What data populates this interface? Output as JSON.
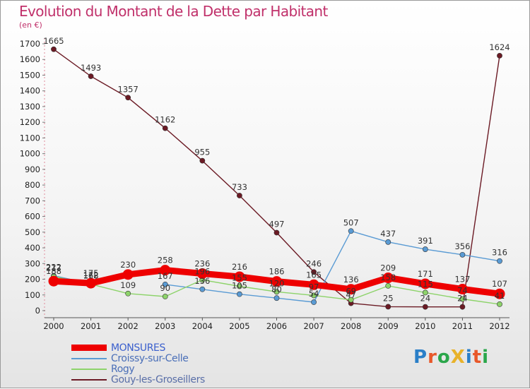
{
  "title": "Evolution du Montant de la Dette par Habitant",
  "subtitle": "(en €)",
  "brand": {
    "text": "ProXiti",
    "letters": [
      {
        "ch": "P",
        "color": "#2a7fc8"
      },
      {
        "ch": "r",
        "color": "#e8582a"
      },
      {
        "ch": "o",
        "color": "#2aa64a"
      },
      {
        "ch": "X",
        "color": "#e8b22a"
      },
      {
        "ch": "i",
        "color": "#2a7fc8"
      },
      {
        "ch": "t",
        "color": "#e8582a"
      },
      {
        "ch": "i",
        "color": "#2aa64a"
      }
    ]
  },
  "chart_data": {
    "type": "line",
    "title": "Evolution du Montant de la Dette par Habitant",
    "subtitle": "(en €)",
    "ylim": [
      0,
      1700
    ],
    "yticks": [
      0,
      100,
      200,
      300,
      400,
      500,
      600,
      700,
      800,
      900,
      1000,
      1100,
      1200,
      1300,
      1400,
      1500,
      1600,
      1700
    ],
    "x": [
      "2000",
      "2001",
      "2002",
      "2003",
      "2004",
      "2005",
      "2006",
      "2007",
      "2008",
      "2009",
      "2010",
      "2011",
      "2012"
    ],
    "grid": false,
    "legend_position": "bottom-left",
    "series": [
      {
        "name": "Gouy-les-Groseillers",
        "color": "#6b1a24",
        "values": [
          1665,
          1493,
          1357,
          1162,
          955,
          733,
          497,
          246,
          47,
          25,
          24,
          24,
          1624
        ]
      },
      {
        "name": "Croissy-sur-Celle",
        "color": "#5a9bd4",
        "values": [
          222,
          172,
          null,
          167,
          136,
          105,
          80,
          54,
          507,
          437,
          391,
          356,
          316
        ]
      },
      {
        "name": "Rogy",
        "color": "#8dd36a",
        "values": [
          217,
          168,
          109,
          90,
          196,
          155,
          120,
          97,
          69,
          158,
          115,
          74,
          41
        ]
      },
      {
        "name": "MONSURES",
        "color": "#ee0000",
        "values": [
          188,
          175,
          230,
          258,
          236,
          216,
          186,
          165,
          136,
          209,
          171,
          137,
          107
        ]
      }
    ],
    "data_labels": [
      {
        "series": "Gouy-les-Groseillers",
        "values": [
          "1665",
          "1493",
          "1357",
          "1162",
          "955",
          "733",
          "497",
          "246",
          "47",
          "25",
          "24",
          "24",
          "1624"
        ]
      },
      {
        "series": "Croissy-sur-Celle",
        "values": [
          "222",
          "172",
          "",
          "167",
          "136",
          "105",
          "80",
          "54",
          "507",
          "437",
          "391",
          "356",
          "316"
        ]
      },
      {
        "series": "Rogy",
        "values": [
          "217",
          "168",
          "109",
          "90",
          "196",
          "155",
          "120",
          "97",
          "69",
          "158",
          "115",
          "74",
          "41"
        ]
      },
      {
        "series": "MONSURES",
        "values": [
          "188",
          "175",
          "230",
          "258",
          "236",
          "216",
          "186",
          "165",
          "136",
          "209",
          "171",
          "137",
          "107"
        ]
      }
    ]
  },
  "legend": [
    {
      "label": "MONSURES",
      "color": "#ee0000",
      "thick": true
    },
    {
      "label": "Croissy-sur-Celle",
      "color": "#5a9bd4",
      "thick": false
    },
    {
      "label": "Rogy",
      "color": "#8dd36a",
      "thick": false
    },
    {
      "label": "Gouy-les-Groseillers",
      "color": "#6b1a24",
      "thick": false
    }
  ]
}
